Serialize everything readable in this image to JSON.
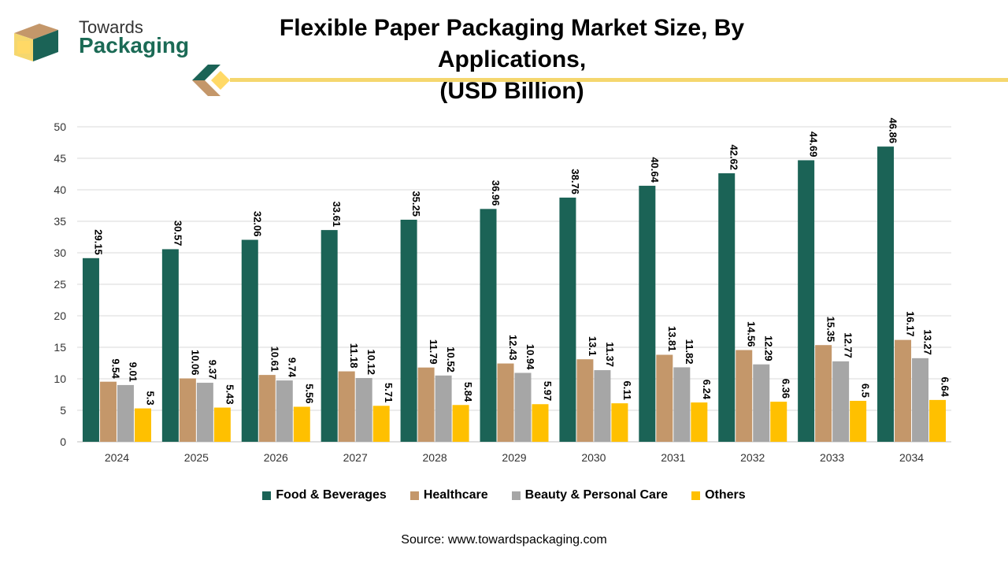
{
  "logo": {
    "line1": "Towards",
    "line2": "Packaging"
  },
  "title_line1": "Flexible Paper Packaging Market Size, By Applications,",
  "title_line2": "(USD Billion)",
  "source": "Source: www.towardspackaging.com",
  "colors": {
    "food": "#1b6356",
    "health": "#c4976a",
    "beauty": "#a6a6a6",
    "others": "#ffc000",
    "accent": "#f5d76e"
  },
  "chart_data": {
    "type": "bar",
    "categories": [
      "2024",
      "2025",
      "2026",
      "2027",
      "2028",
      "2029",
      "2030",
      "2031",
      "2032",
      "2033",
      "2034"
    ],
    "series": [
      {
        "name": "Food & Beverages",
        "values": [
          29.15,
          30.57,
          32.06,
          33.61,
          35.25,
          36.96,
          38.76,
          40.64,
          42.62,
          44.69,
          46.86
        ]
      },
      {
        "name": "Healthcare",
        "values": [
          9.54,
          10.06,
          10.61,
          11.18,
          11.79,
          12.43,
          13.1,
          13.81,
          14.56,
          15.35,
          16.17
        ]
      },
      {
        "name": "Beauty & Personal Care",
        "values": [
          9.01,
          9.37,
          9.74,
          10.12,
          10.52,
          10.94,
          11.37,
          11.82,
          12.29,
          12.77,
          13.27
        ]
      },
      {
        "name": "Others",
        "values": [
          5.3,
          5.43,
          5.56,
          5.71,
          5.84,
          5.97,
          6.11,
          6.24,
          6.36,
          6.5,
          6.64
        ]
      }
    ],
    "title": "Flexible Paper Packaging Market Size, By Applications, (USD Billion)",
    "ylim": [
      0,
      50
    ],
    "yticks": [
      "0",
      "5",
      "10",
      "15",
      "20",
      "25",
      "30",
      "35",
      "40",
      "45",
      "50"
    ],
    "grid": true,
    "legend": "bottom"
  }
}
